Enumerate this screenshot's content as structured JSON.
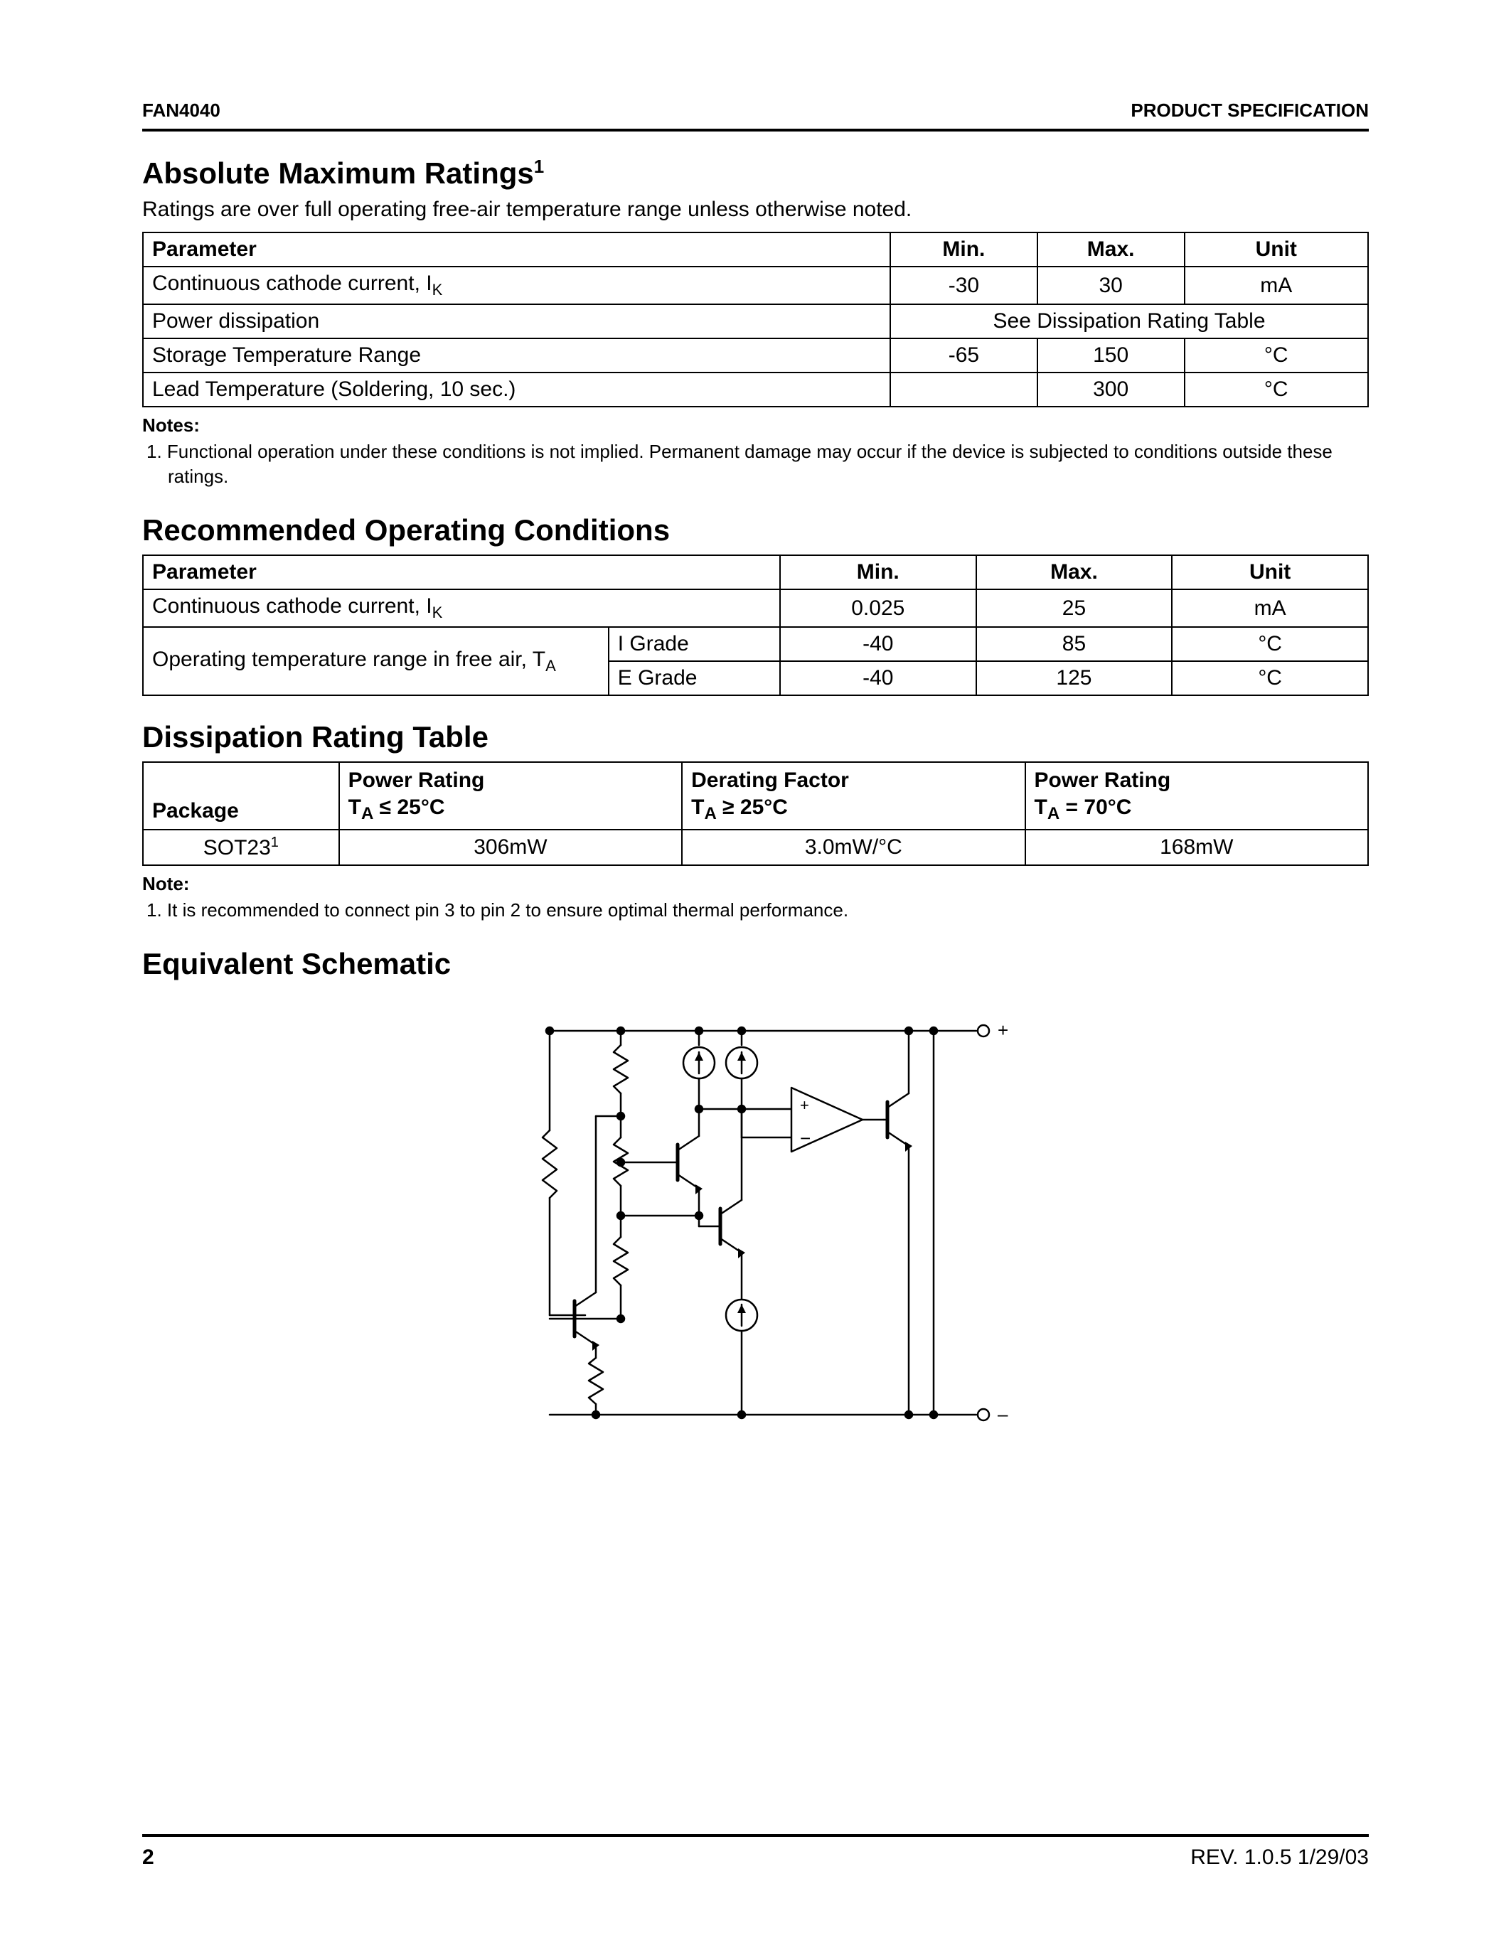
{
  "header": {
    "left": "FAN4040",
    "right": "PRODUCT SPECIFICATION"
  },
  "footer": {
    "page": "2",
    "rev": "REV. 1.0.5 1/29/03"
  },
  "amr": {
    "title": "Absolute Maximum Ratings",
    "title_sup": "1",
    "subtitle": "Ratings are over full operating free-air temperature range unless otherwise noted.",
    "columns": [
      "Parameter",
      "Min.",
      "Max.",
      "Unit"
    ],
    "rows": [
      {
        "param_html": "Continuous cathode current, I<sub class='sub'>K</sub>",
        "min": "-30",
        "max": "30",
        "unit": "mA"
      },
      {
        "param_html": "Power dissipation",
        "span_text": "See Dissipation Rating Table"
      },
      {
        "param_html": "Storage Temperature Range",
        "min": "-65",
        "max": "150",
        "unit": "°C"
      },
      {
        "param_html": "Lead Temperature (Soldering, 10 sec.)",
        "min": "",
        "max": "300",
        "unit": "°C"
      }
    ],
    "notes_label": "Notes:",
    "note1": "1.  Functional operation under these conditions is not implied. Permanent damage may occur if the device is subjected to conditions outside these ratings."
  },
  "roc": {
    "title": "Recommended Operating Conditions",
    "columns": [
      "Parameter",
      "Min.",
      "Max.",
      "Unit"
    ],
    "rows": [
      {
        "param_html": "Continuous cathode current, I<sub class='sub'>K</sub>",
        "grade": "",
        "min": "0.025",
        "max": "25",
        "unit": "mA",
        "rowspan_param": 1
      },
      {
        "param_html": "Operating temperature range in free air, T<sub class='sub'>A</sub>",
        "grade": "I Grade",
        "min": "-40",
        "max": "85",
        "unit": "°C",
        "rowspan_param": 2
      },
      {
        "param_html": "",
        "grade": "E Grade",
        "min": "-40",
        "max": "125",
        "unit": "°C",
        "rowspan_param": 0
      }
    ]
  },
  "drt": {
    "title": "Dissipation Rating Table",
    "columns": [
      {
        "l1": "Package",
        "l2": ""
      },
      {
        "l1": "Power Rating",
        "l2": "T<sub class='sub2'>A</sub> ≤ 25°C"
      },
      {
        "l1": "Derating Factor",
        "l2": "T<sub class='sub2'>A</sub> ≥ 25°C"
      },
      {
        "l1": "Power Rating",
        "l2": "T<sub class='sub2'>A</sub> = 70°C"
      }
    ],
    "rows": [
      {
        "pkg_html": "SOT23<sup class='sup'>1</sup>",
        "c1": "306mW",
        "c2": "3.0mW/°C",
        "c3": "168mW"
      }
    ],
    "notes_label": "Note:",
    "note1": "1.  It is recommended to connect pin 3 to pin 2 to ensure optimal thermal performance."
  },
  "schem": {
    "title": "Equivalent Schematic",
    "stroke": "#000000",
    "stroke_width": 2.5,
    "plus": "+",
    "minus": "–"
  },
  "style": {
    "page_bg": "#ffffff",
    "text_color": "#000000",
    "border_color": "#000000",
    "body_fontsize": 30,
    "title_fontsize": 42,
    "note_fontsize": 26,
    "hr_thickness": 4
  }
}
